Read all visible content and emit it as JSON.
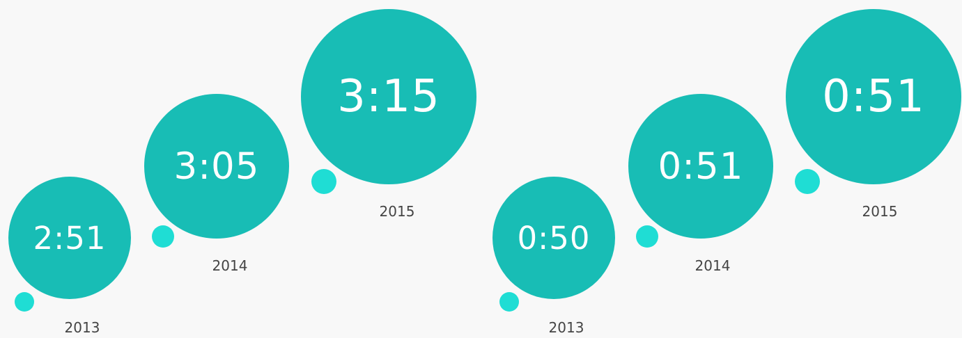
{
  "colors": {
    "bubble": "#18bdb5",
    "dot": "#1fddd4",
    "background": "#f8f8f8",
    "year_text": "#444444",
    "value_text": "#ffffff"
  },
  "chart_data": [
    {
      "type": "bubble",
      "categories": [
        "2013",
        "2014",
        "2015"
      ],
      "values": [
        "2:51",
        "3:05",
        "3:15"
      ]
    },
    {
      "type": "bubble",
      "categories": [
        "2013",
        "2014",
        "2015"
      ],
      "values": [
        "0:50",
        "0:51",
        "0:51"
      ]
    }
  ]
}
